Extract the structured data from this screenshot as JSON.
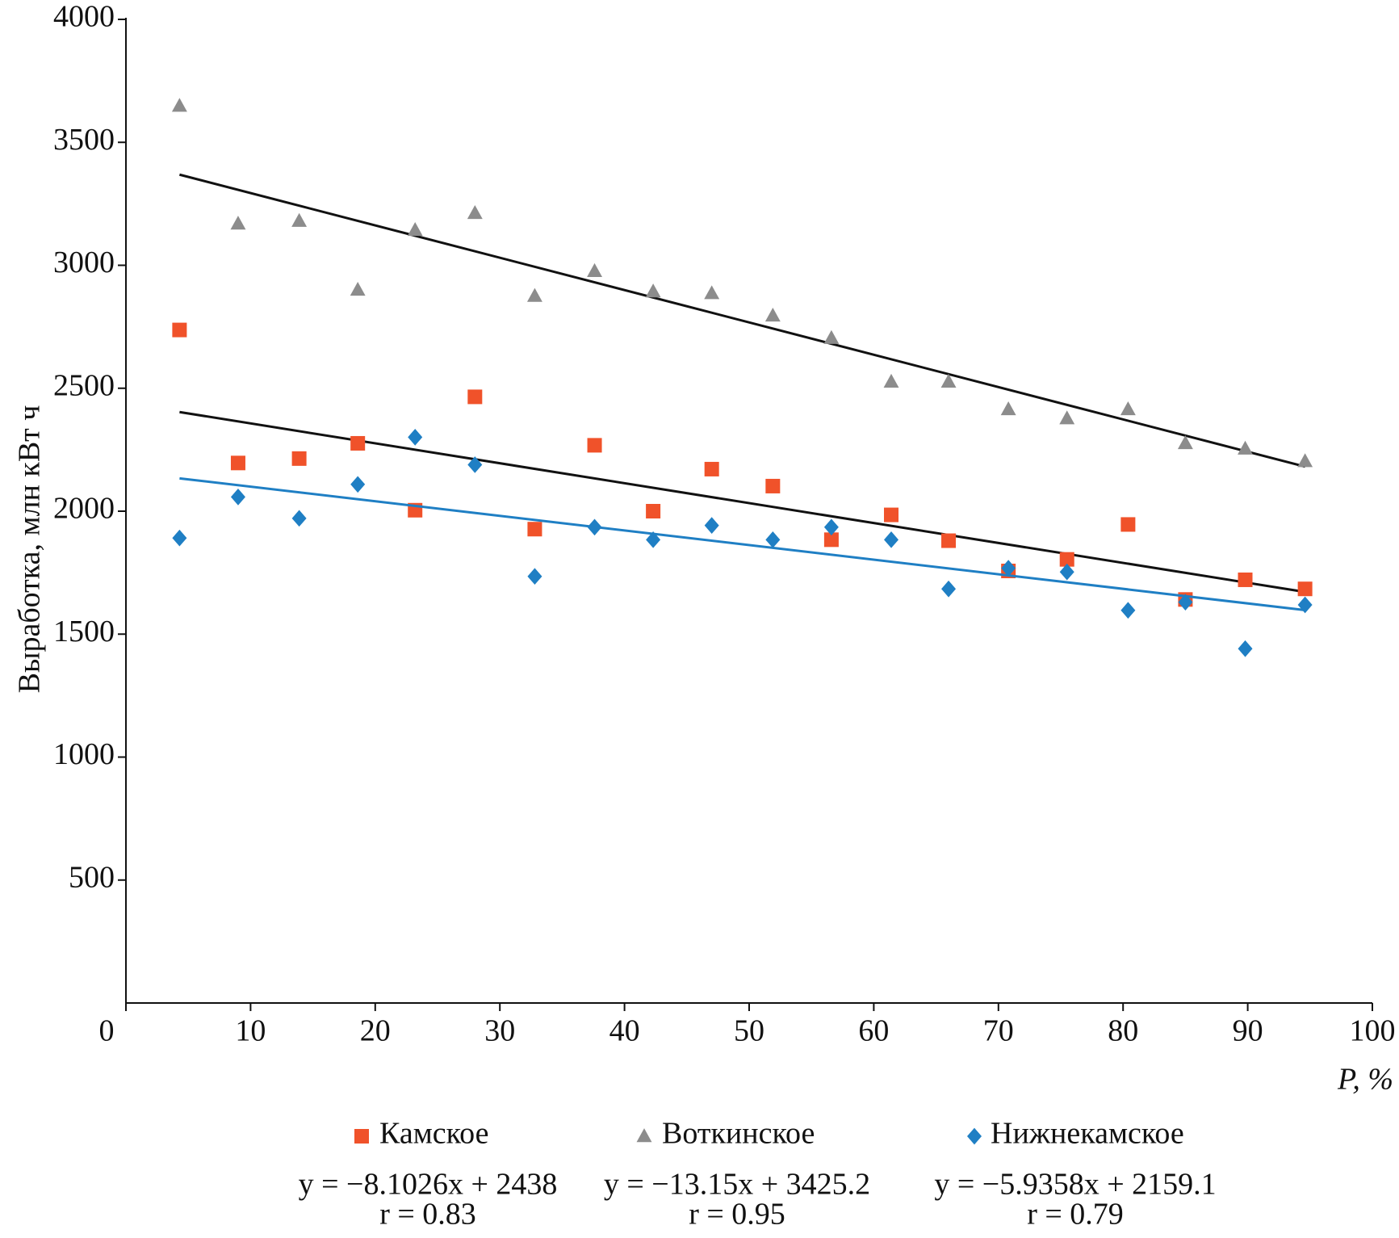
{
  "chart_data": {
    "type": "scatter",
    "y_label": "Выработка, млн кВт ч",
    "x_label": "P, %",
    "xlim": [
      0,
      100
    ],
    "ylim": [
      0,
      4000
    ],
    "xticks": [
      0,
      10,
      20,
      30,
      40,
      50,
      60,
      70,
      80,
      90,
      100
    ],
    "yticks": [
      500,
      1000,
      1500,
      2000,
      2500,
      3000,
      3500,
      4000
    ],
    "x": [
      4.3,
      9.0,
      13.9,
      18.6,
      23.2,
      28.0,
      32.8,
      37.6,
      42.3,
      47.0,
      51.9,
      56.6,
      61.4,
      66.0,
      70.8,
      75.5,
      80.4,
      85.0,
      89.8,
      94.6
    ],
    "series": [
      {
        "name": "Камское",
        "color": "#f0522a",
        "marker": "square",
        "trend_color": "#111111",
        "trend": {
          "slope": -8.1026,
          "intercept": 2438
        },
        "equation": "y = −8.1026x + 2438",
        "r_text": "r = 0.83",
        "values": [
          2737,
          2196,
          2214,
          2276,
          2004,
          2465,
          1927,
          2268,
          2000,
          2171,
          2102,
          1884,
          1985,
          1880,
          1757,
          1804,
          1946,
          1641,
          1721,
          1684
        ]
      },
      {
        "name": "Воткинское",
        "color": "#8c8c8c",
        "marker": "triangle",
        "trend_color": "#111111",
        "trend": {
          "slope": -13.15,
          "intercept": 3425.2
        },
        "equation": "y = −13.15x + 3425.2",
        "r_text": "r = 0.95",
        "values": [
          3648,
          3169,
          3180,
          2900,
          3143,
          3212,
          2875,
          2976,
          2893,
          2886,
          2795,
          2704,
          2526,
          2526,
          2414,
          2377,
          2414,
          2276,
          2254,
          2203
        ]
      },
      {
        "name": "Нижнекамское",
        "color": "#1f7fc4",
        "marker": "diamond",
        "trend_color": "#1f7fc4",
        "trend": {
          "slope": -5.9358,
          "intercept": 2159.1
        },
        "equation": "y = −5.9358x + 2159.1",
        "r_text": "r = 0.79",
        "values": [
          1891,
          2058,
          1971,
          2109,
          2301,
          2189,
          1735,
          1935,
          1884,
          1942,
          1884,
          1935,
          1884,
          1684,
          1768,
          1753,
          1597,
          1630,
          1441,
          1619
        ]
      }
    ]
  }
}
